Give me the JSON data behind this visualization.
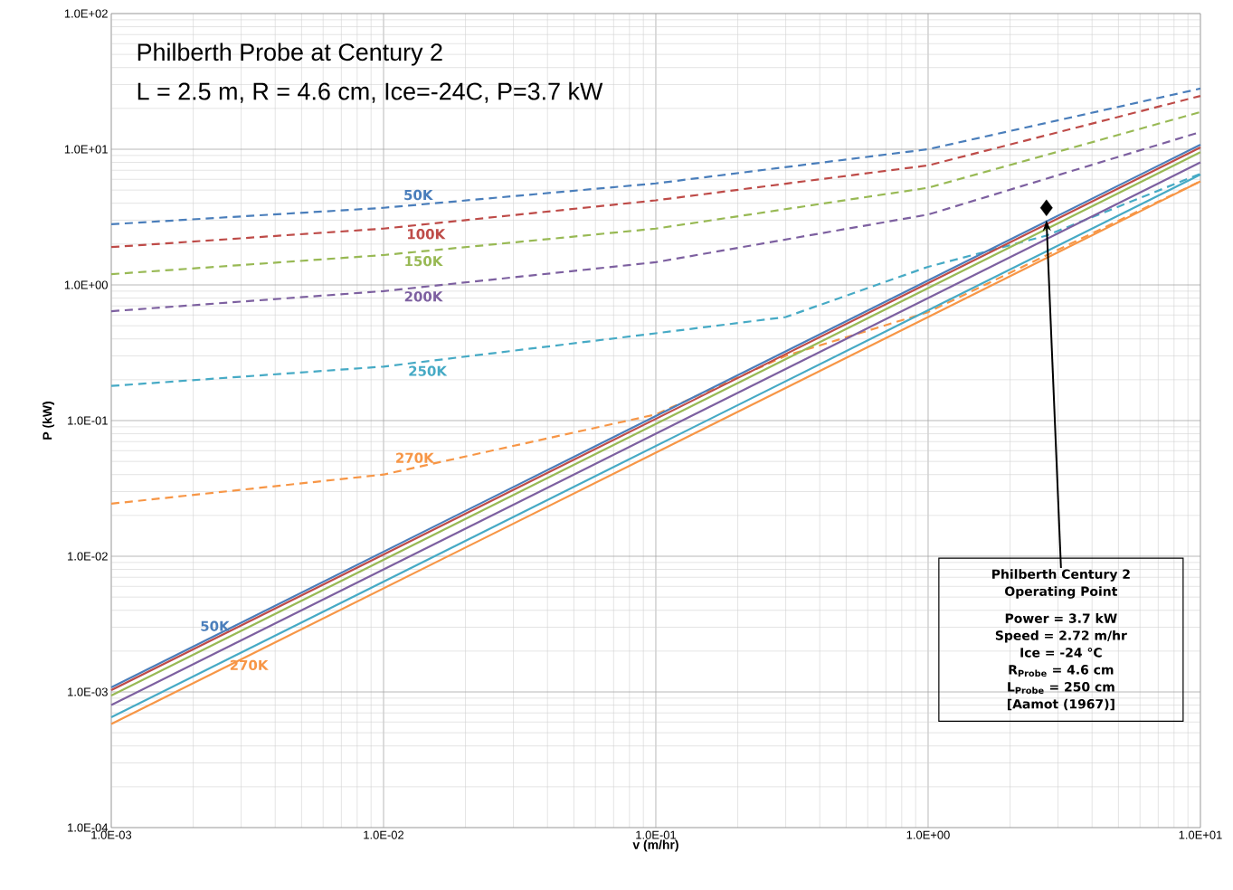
{
  "chart_data": {
    "type": "line",
    "title": "Philberth Probe at Century 2",
    "subtitle": "L = 2.5 m, R = 4.6 cm, Ice=-24C, P=3.7 kW",
    "xlabel": "v (m/hr)",
    "ylabel": "P (kW)",
    "log": "xy",
    "grid": true,
    "xlim": [
      0.001,
      10
    ],
    "ylim": [
      0.0001,
      100
    ],
    "xticks": [
      {
        "value": 0.001,
        "label": "1.0E-03"
      },
      {
        "value": 0.01,
        "label": "1.0E-02"
      },
      {
        "value": 0.1,
        "label": "1.0E-01"
      },
      {
        "value": 1,
        "label": "1.0E+00"
      },
      {
        "value": 10,
        "label": "1.0E+01"
      }
    ],
    "yticks": [
      {
        "value": 0.0001,
        "label": "1.0E-04"
      },
      {
        "value": 0.001,
        "label": "1.0E-03"
      },
      {
        "value": 0.01,
        "label": "1.0E-02"
      },
      {
        "value": 0.1,
        "label": "1.0E-01"
      },
      {
        "value": 1,
        "label": "1.0E+00"
      },
      {
        "value": 10,
        "label": "1.0E+01"
      },
      {
        "value": 100,
        "label": "1.0E+02"
      }
    ],
    "series": [
      {
        "color": "#4a7ebb",
        "line_style": "dashed",
        "x": [
          0.001,
          0.01,
          0.1,
          1,
          10
        ],
        "values": [
          2.8,
          3.7,
          5.6,
          10,
          28
        ]
      },
      {
        "color": "#be4b48",
        "line_style": "dashed",
        "x": [
          0.001,
          0.01,
          0.1,
          1,
          10
        ],
        "values": [
          1.9,
          2.6,
          4.2,
          7.6,
          24.7
        ]
      },
      {
        "color": "#98b954",
        "line_style": "dashed",
        "x": [
          0.001,
          0.01,
          0.1,
          1,
          10
        ],
        "values": [
          1.2,
          1.66,
          2.6,
          5.2,
          18.8
        ]
      },
      {
        "color": "#7d60a0",
        "line_style": "dashed",
        "x": [
          0.001,
          0.01,
          0.1,
          1,
          10
        ],
        "values": [
          0.64,
          0.9,
          1.47,
          3.3,
          13.4
        ]
      },
      {
        "color": "#46aac5",
        "line_style": "dashed",
        "x": [
          0.001,
          0.01,
          0.1,
          0.3,
          1,
          2.7,
          10
        ],
        "values": [
          0.18,
          0.25,
          0.44,
          0.58,
          1.36,
          2.3,
          6.6
        ]
      },
      {
        "color": "#f79646",
        "line_style": "dashed",
        "x": [
          0.001,
          0.01,
          0.1,
          0.3,
          1,
          10
        ],
        "values": [
          0.0244,
          0.04,
          0.111,
          0.3,
          0.63,
          5.8
        ]
      },
      {
        "color": "#4a7ebb",
        "line_style": "solid",
        "x": [
          0.001,
          10
        ],
        "values": [
          0.00108,
          10.8
        ]
      },
      {
        "color": "#be4b48",
        "line_style": "solid",
        "x": [
          0.001,
          10
        ],
        "values": [
          0.00103,
          10.3
        ]
      },
      {
        "color": "#98b954",
        "line_style": "solid",
        "x": [
          0.001,
          10
        ],
        "values": [
          0.00094,
          9.5
        ]
      },
      {
        "color": "#7d60a0",
        "line_style": "solid",
        "x": [
          0.001,
          10
        ],
        "values": [
          0.0008,
          8
        ]
      },
      {
        "color": "#46aac5",
        "line_style": "solid",
        "x": [
          0.001,
          10
        ],
        "values": [
          0.00065,
          6.5
        ]
      },
      {
        "color": "#f79646",
        "line_style": "solid",
        "x": [
          0.001,
          10
        ],
        "values": [
          0.00058,
          5.8
        ]
      },
      {
        "type": "scatter",
        "marker": "diamond",
        "color": "#000000",
        "x": [
          2.72
        ],
        "values": [
          3.7
        ]
      }
    ],
    "annotations": [
      {
        "text": "50K",
        "x": 0.0134,
        "y": 3.9
      },
      {
        "text": "100K",
        "x": 0.0143,
        "y": 2.8
      },
      {
        "text": "150K",
        "x": 0.014,
        "y": 1.77
      },
      {
        "text": "200K",
        "x": 0.014,
        "y": 0.97
      },
      {
        "text": "250K",
        "x": 0.0145,
        "y": 0.274
      },
      {
        "text": "270K",
        "x": 0.013,
        "y": 0.045
      },
      {
        "text": "50K",
        "x": 0.0024,
        "y": 0.00259
      },
      {
        "text": "270K",
        "x": 0.0032,
        "y": 0.00186
      },
      {
        "text": "Philberth Century 2",
        "x": 2.72,
        "y": 3.0
      },
      "Operating Point",
      "Power = 3.7 kW",
      "Speed = 2.72 m/hr",
      "Ice = -24 °C",
      "R$_{Probe}$ = 4.6 cm",
      "L$_{Probe}$ = 250 cm",
      "[Aamot (1967)]"
    ]
  }
}
